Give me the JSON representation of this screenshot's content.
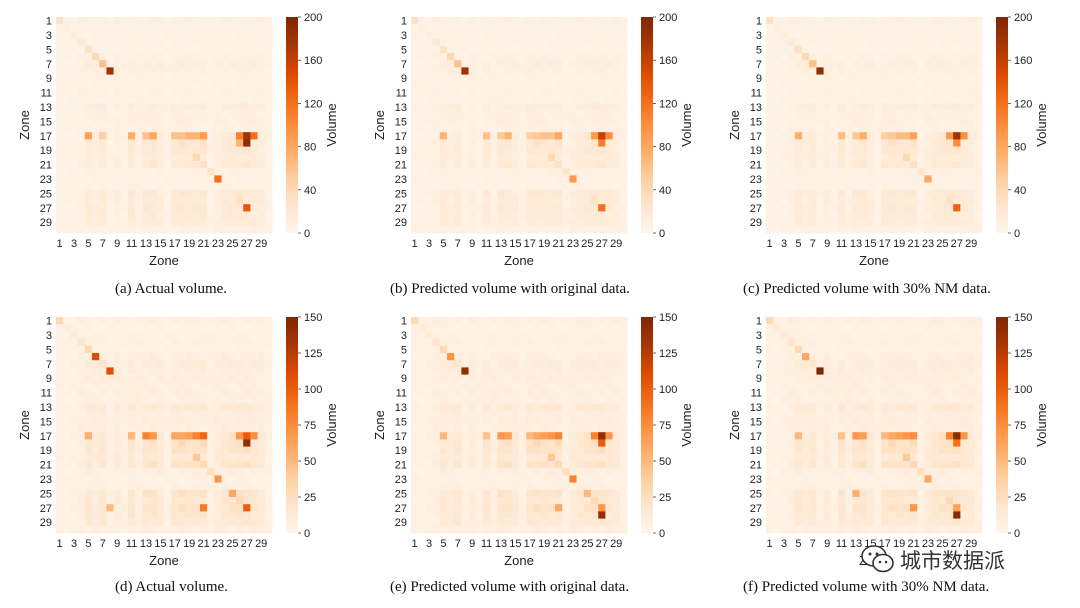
{
  "chart_data": [
    {
      "type": "heatmap",
      "panel": "a",
      "caption": "(a) Actual volume.",
      "xlabel": "Zone",
      "ylabel": "Zone",
      "colorbar_label": "Volume",
      "colorbar_ticks": [
        0,
        40,
        80,
        120,
        160,
        200
      ],
      "vmin": 0,
      "vmax": 200,
      "x_ticks": [
        "1",
        "3",
        "5",
        "7",
        "9",
        "11",
        "13",
        "15",
        "17",
        "19",
        "21",
        "23",
        "25",
        "27",
        "29"
      ],
      "y_ticks": [
        "1",
        "3",
        "5",
        "7",
        "9",
        "11",
        "13",
        "15",
        "17",
        "19",
        "21",
        "23",
        "25",
        "27",
        "29"
      ],
      "zones": 30,
      "diagonal": [
        30,
        12,
        14,
        20,
        30,
        40,
        60,
        180,
        10,
        8,
        8,
        10,
        12,
        8,
        10,
        8,
        60,
        30,
        20,
        40,
        30,
        25,
        40,
        10,
        20,
        30,
        35,
        10,
        12,
        8
      ],
      "hot_cells": [
        [
          17,
          5,
          85
        ],
        [
          17,
          11,
          75
        ],
        [
          17,
          14,
          80
        ],
        [
          17,
          21,
          90
        ],
        [
          17,
          27,
          180
        ],
        [
          18,
          27,
          190
        ],
        [
          17,
          26,
          110
        ],
        [
          17,
          28,
          120
        ],
        [
          18,
          26,
          70
        ],
        [
          27,
          27,
          140
        ],
        [
          23,
          23,
          120
        ],
        [
          17,
          18,
          60
        ],
        [
          17,
          19,
          70
        ],
        [
          17,
          20,
          70
        ],
        [
          17,
          13,
          60
        ],
        [
          17,
          7,
          50
        ]
      ],
      "row_profile": [
        6,
        3,
        4,
        5,
        3,
        6,
        10,
        8,
        6,
        5,
        6,
        5,
        14,
        8,
        8,
        6,
        45,
        32,
        24,
        14,
        24,
        6,
        4,
        5,
        22,
        16,
        20,
        18,
        14,
        6
      ],
      "col_profile": [
        3,
        2,
        4,
        6,
        16,
        10,
        16,
        4,
        10,
        4,
        18,
        6,
        20,
        22,
        12,
        4,
        20,
        22,
        20,
        20,
        26,
        4,
        10,
        16,
        20,
        22,
        30,
        16,
        12,
        4
      ]
    },
    {
      "type": "heatmap",
      "panel": "b",
      "caption": "(b) Predicted volume with original data.",
      "xlabel": "Zone",
      "ylabel": "Zone",
      "colorbar_label": "Volume",
      "colorbar_ticks": [
        0,
        40,
        80,
        120,
        160,
        200
      ],
      "vmin": 0,
      "vmax": 200,
      "x_ticks": [
        "1",
        "3",
        "5",
        "7",
        "9",
        "11",
        "13",
        "15",
        "17",
        "19",
        "21",
        "23",
        "25",
        "27",
        "29"
      ],
      "y_ticks": [
        "1",
        "3",
        "5",
        "7",
        "9",
        "11",
        "13",
        "15",
        "17",
        "19",
        "21",
        "23",
        "25",
        "27",
        "29"
      ],
      "zones": 30,
      "diagonal": [
        30,
        12,
        14,
        20,
        30,
        40,
        60,
        180,
        10,
        8,
        8,
        10,
        12,
        8,
        10,
        8,
        50,
        30,
        20,
        40,
        30,
        25,
        40,
        10,
        20,
        30,
        30,
        10,
        12,
        8
      ],
      "hot_cells": [
        [
          17,
          5,
          70
        ],
        [
          17,
          11,
          60
        ],
        [
          17,
          14,
          70
        ],
        [
          17,
          21,
          80
        ],
        [
          17,
          27,
          160
        ],
        [
          18,
          27,
          110
        ],
        [
          17,
          26,
          90
        ],
        [
          17,
          28,
          100
        ],
        [
          27,
          27,
          120
        ],
        [
          23,
          23,
          90
        ],
        [
          17,
          18,
          55
        ],
        [
          17,
          19,
          60
        ],
        [
          17,
          20,
          60
        ],
        [
          17,
          13,
          55
        ]
      ],
      "row_profile": [
        6,
        3,
        4,
        5,
        3,
        6,
        10,
        8,
        6,
        5,
        6,
        5,
        14,
        8,
        8,
        6,
        42,
        30,
        22,
        14,
        22,
        6,
        4,
        5,
        20,
        15,
        18,
        16,
        13,
        6
      ],
      "col_profile": [
        3,
        2,
        4,
        6,
        16,
        10,
        16,
        4,
        10,
        4,
        18,
        6,
        20,
        22,
        12,
        4,
        20,
        22,
        20,
        20,
        26,
        4,
        10,
        16,
        20,
        22,
        30,
        16,
        12,
        4
      ]
    },
    {
      "type": "heatmap",
      "panel": "c",
      "caption": "(c) Predicted volume with 30% NM data.",
      "xlabel": "Zone",
      "ylabel": "Zone",
      "colorbar_label": "Volume",
      "colorbar_ticks": [
        0,
        40,
        80,
        120,
        160,
        200
      ],
      "vmin": 0,
      "vmax": 200,
      "x_ticks": [
        "1",
        "3",
        "5",
        "7",
        "9",
        "11",
        "13",
        "15",
        "17",
        "19",
        "21",
        "23",
        "25",
        "27",
        "29"
      ],
      "y_ticks": [
        "1",
        "3",
        "5",
        "7",
        "9",
        "11",
        "13",
        "15",
        "17",
        "19",
        "21",
        "23",
        "25",
        "27",
        "29"
      ],
      "zones": 30,
      "diagonal": [
        30,
        12,
        14,
        20,
        30,
        40,
        60,
        190,
        10,
        8,
        8,
        10,
        12,
        8,
        10,
        8,
        50,
        30,
        20,
        40,
        30,
        25,
        40,
        10,
        20,
        30,
        30,
        10,
        12,
        8
      ],
      "hot_cells": [
        [
          17,
          5,
          75
        ],
        [
          17,
          11,
          65
        ],
        [
          17,
          14,
          75
        ],
        [
          17,
          21,
          85
        ],
        [
          17,
          27,
          180
        ],
        [
          18,
          27,
          100
        ],
        [
          17,
          26,
          90
        ],
        [
          17,
          28,
          100
        ],
        [
          27,
          27,
          130
        ],
        [
          23,
          23,
          80
        ],
        [
          17,
          18,
          55
        ],
        [
          17,
          19,
          65
        ],
        [
          17,
          20,
          65
        ],
        [
          17,
          13,
          55
        ]
      ],
      "row_profile": [
        6,
        3,
        4,
        5,
        3,
        6,
        10,
        8,
        6,
        5,
        6,
        5,
        14,
        8,
        8,
        6,
        42,
        30,
        22,
        14,
        22,
        6,
        4,
        5,
        20,
        15,
        18,
        16,
        13,
        6
      ],
      "col_profile": [
        3,
        2,
        4,
        6,
        16,
        10,
        16,
        4,
        10,
        4,
        18,
        6,
        20,
        22,
        12,
        4,
        20,
        22,
        20,
        20,
        26,
        4,
        10,
        16,
        20,
        22,
        30,
        16,
        12,
        4
      ]
    },
    {
      "type": "heatmap",
      "panel": "d",
      "caption": "(d) Actual volume.",
      "xlabel": "Zone",
      "ylabel": "Zone",
      "colorbar_label": "Volume",
      "colorbar_ticks": [
        0,
        25,
        50,
        75,
        100,
        125,
        150
      ],
      "vmin": 0,
      "vmax": 150,
      "x_ticks": [
        "1",
        "3",
        "5",
        "7",
        "9",
        "11",
        "13",
        "15",
        "17",
        "19",
        "21",
        "23",
        "25",
        "27",
        "29"
      ],
      "y_ticks": [
        "1",
        "3",
        "5",
        "7",
        "9",
        "11",
        "13",
        "15",
        "17",
        "19",
        "21",
        "23",
        "25",
        "27",
        "29"
      ],
      "zones": 30,
      "diagonal": [
        30,
        12,
        14,
        20,
        30,
        110,
        20,
        110,
        10,
        8,
        8,
        10,
        12,
        8,
        10,
        8,
        60,
        30,
        20,
        40,
        30,
        25,
        70,
        10,
        20,
        30,
        35,
        10,
        12,
        8
      ],
      "hot_cells": [
        [
          17,
          5,
          55
        ],
        [
          17,
          11,
          50
        ],
        [
          17,
          13,
          80
        ],
        [
          17,
          14,
          70
        ],
        [
          17,
          18,
          60
        ],
        [
          17,
          19,
          65
        ],
        [
          17,
          20,
          80
        ],
        [
          17,
          21,
          95
        ],
        [
          17,
          26,
          70
        ],
        [
          17,
          27,
          100
        ],
        [
          18,
          27,
          140
        ],
        [
          17,
          28,
          75
        ],
        [
          27,
          27,
          100
        ],
        [
          27,
          21,
          85
        ],
        [
          27,
          8,
          50
        ],
        [
          25,
          25,
          60
        ]
      ],
      "row_profile": [
        6,
        3,
        4,
        5,
        3,
        6,
        10,
        8,
        6,
        5,
        6,
        5,
        14,
        8,
        8,
        6,
        40,
        28,
        22,
        14,
        22,
        6,
        4,
        5,
        22,
        16,
        24,
        18,
        14,
        6
      ],
      "col_profile": [
        3,
        2,
        4,
        6,
        16,
        10,
        16,
        4,
        10,
        4,
        18,
        6,
        20,
        22,
        12,
        4,
        20,
        22,
        20,
        20,
        26,
        4,
        10,
        16,
        20,
        22,
        30,
        16,
        12,
        4
      ]
    },
    {
      "type": "heatmap",
      "panel": "e",
      "caption": "(e) Predicted volume with original data.",
      "xlabel": "Zone",
      "ylabel": "Zone",
      "colorbar_label": "Volume",
      "colorbar_ticks": [
        0,
        25,
        50,
        75,
        100,
        125,
        150
      ],
      "vmin": 0,
      "vmax": 150,
      "x_ticks": [
        "1",
        "3",
        "5",
        "7",
        "9",
        "11",
        "13",
        "15",
        "17",
        "19",
        "21",
        "23",
        "25",
        "27",
        "29"
      ],
      "y_ticks": [
        "1",
        "3",
        "5",
        "7",
        "9",
        "11",
        "13",
        "15",
        "17",
        "19",
        "21",
        "23",
        "25",
        "27",
        "29"
      ],
      "zones": 30,
      "diagonal": [
        30,
        12,
        14,
        20,
        30,
        70,
        20,
        140,
        10,
        8,
        8,
        10,
        12,
        8,
        10,
        8,
        50,
        30,
        20,
        40,
        30,
        25,
        80,
        10,
        20,
        30,
        60,
        10,
        12,
        8
      ],
      "hot_cells": [
        [
          17,
          5,
          50
        ],
        [
          17,
          11,
          45
        ],
        [
          17,
          13,
          70
        ],
        [
          17,
          14,
          65
        ],
        [
          17,
          18,
          60
        ],
        [
          17,
          19,
          65
        ],
        [
          17,
          20,
          70
        ],
        [
          17,
          21,
          80
        ],
        [
          17,
          26,
          80
        ],
        [
          17,
          27,
          140
        ],
        [
          18,
          27,
          100
        ],
        [
          17,
          28,
          70
        ],
        [
          28,
          27,
          140
        ],
        [
          27,
          27,
          70
        ],
        [
          27,
          21,
          60
        ],
        [
          25,
          25,
          50
        ]
      ],
      "row_profile": [
        6,
        3,
        4,
        5,
        3,
        6,
        10,
        8,
        6,
        5,
        6,
        5,
        14,
        8,
        8,
        6,
        40,
        28,
        22,
        14,
        22,
        6,
        4,
        5,
        20,
        15,
        22,
        16,
        13,
        6
      ],
      "col_profile": [
        3,
        2,
        4,
        6,
        16,
        10,
        16,
        4,
        10,
        4,
        18,
        6,
        20,
        22,
        12,
        4,
        20,
        22,
        20,
        20,
        26,
        4,
        10,
        16,
        20,
        22,
        30,
        16,
        12,
        4
      ]
    },
    {
      "type": "heatmap",
      "panel": "f",
      "caption": "(f) Predicted volume with 30% NM data.",
      "xlabel": "Zone",
      "ylabel": "Zone",
      "colorbar_label": "Volume",
      "colorbar_ticks": [
        0,
        25,
        50,
        75,
        100,
        125,
        150
      ],
      "vmin": 0,
      "vmax": 150,
      "x_ticks": [
        "1",
        "3",
        "5",
        "7",
        "9",
        "11",
        "13",
        "15",
        "17",
        "19",
        "21",
        "23",
        "25",
        "27",
        "29"
      ],
      "y_ticks": [
        "1",
        "3",
        "5",
        "7",
        "9",
        "11",
        "13",
        "15",
        "17",
        "19",
        "21",
        "23",
        "25",
        "27",
        "29"
      ],
      "zones": 30,
      "diagonal": [
        30,
        12,
        14,
        20,
        30,
        60,
        20,
        150,
        10,
        8,
        8,
        10,
        12,
        8,
        10,
        8,
        50,
        30,
        20,
        40,
        30,
        25,
        60,
        10,
        20,
        30,
        60,
        10,
        12,
        8
      ],
      "hot_cells": [
        [
          17,
          5,
          50
        ],
        [
          17,
          11,
          45
        ],
        [
          17,
          13,
          70
        ],
        [
          17,
          14,
          65
        ],
        [
          17,
          18,
          60
        ],
        [
          17,
          19,
          65
        ],
        [
          17,
          20,
          70
        ],
        [
          17,
          21,
          75
        ],
        [
          17,
          26,
          80
        ],
        [
          17,
          27,
          145
        ],
        [
          18,
          27,
          90
        ],
        [
          17,
          28,
          70
        ],
        [
          28,
          27,
          145
        ],
        [
          27,
          27,
          65
        ],
        [
          27,
          21,
          70
        ],
        [
          25,
          13,
          55
        ]
      ],
      "row_profile": [
        6,
        3,
        4,
        5,
        3,
        6,
        10,
        8,
        6,
        5,
        6,
        5,
        14,
        8,
        8,
        6,
        40,
        28,
        22,
        14,
        22,
        6,
        4,
        5,
        20,
        15,
        22,
        16,
        13,
        6
      ],
      "col_profile": [
        3,
        2,
        4,
        6,
        16,
        10,
        16,
        4,
        10,
        4,
        18,
        6,
        20,
        22,
        12,
        4,
        20,
        22,
        20,
        20,
        26,
        4,
        10,
        16,
        20,
        22,
        30,
        16,
        12,
        4
      ]
    }
  ],
  "colormap": [
    "#fff5eb",
    "#fee6ce",
    "#fdd0a2",
    "#fdae6b",
    "#fd8d3c",
    "#f16913",
    "#d94801",
    "#a63603",
    "#7f2704"
  ],
  "watermark": {
    "text": "城市数据派",
    "icon": "wechat-icon"
  }
}
